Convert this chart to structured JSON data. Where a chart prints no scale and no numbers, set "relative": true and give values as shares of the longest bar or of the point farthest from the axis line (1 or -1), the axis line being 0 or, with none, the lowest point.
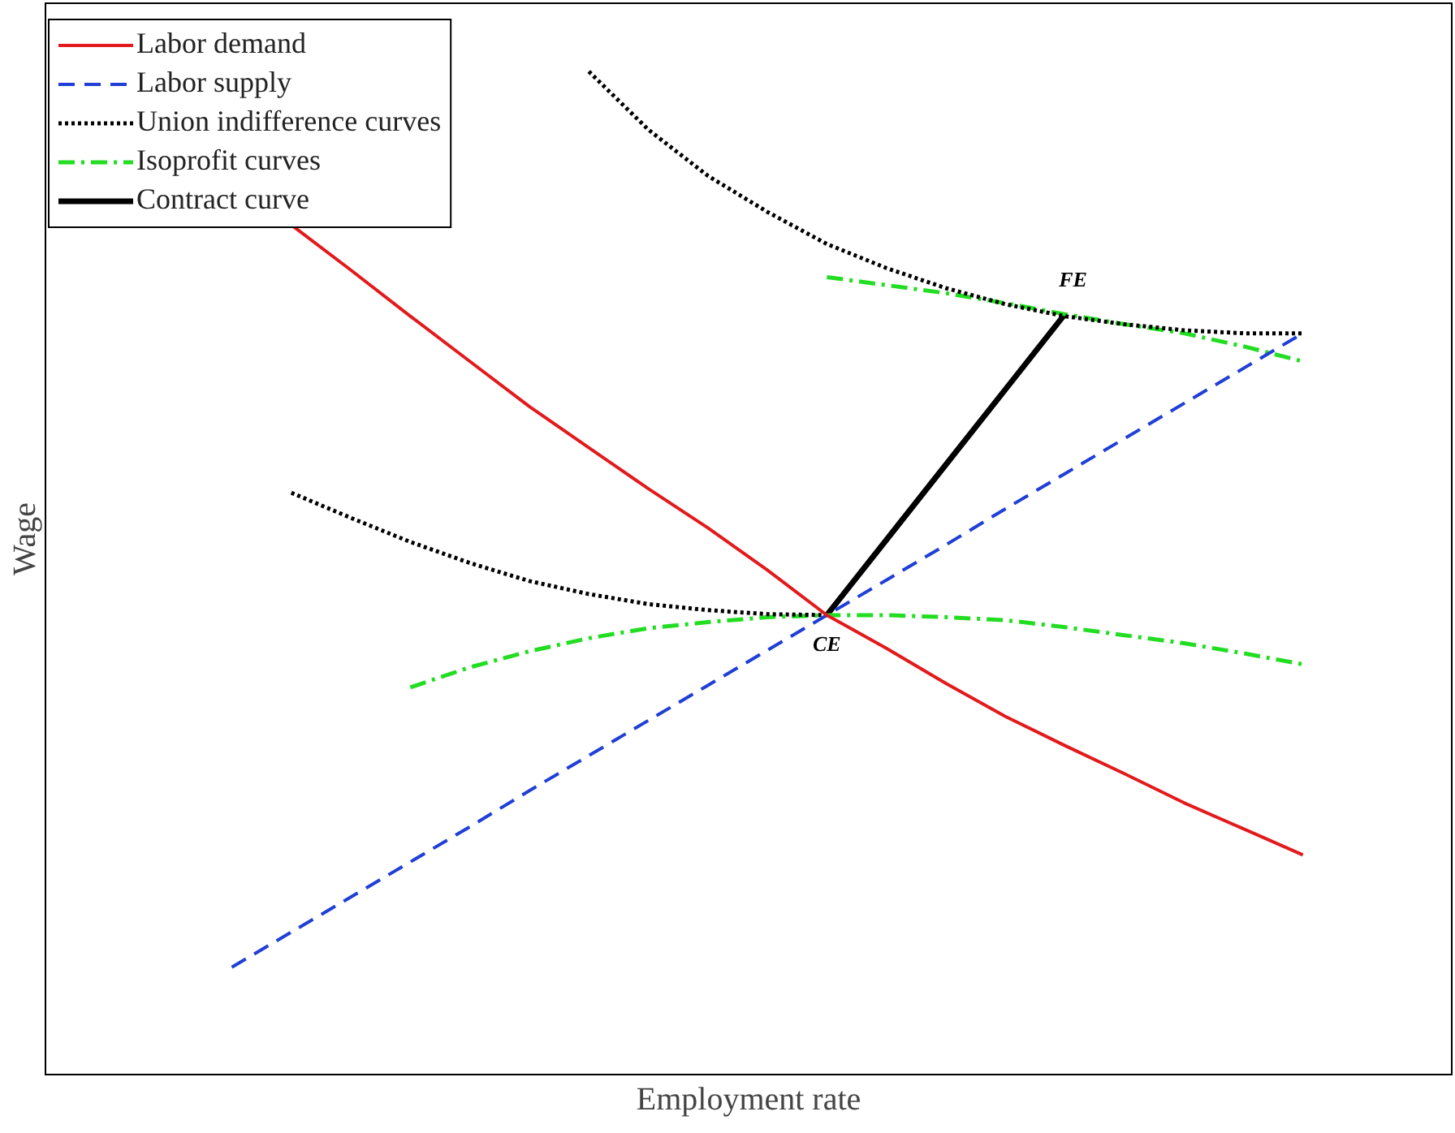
{
  "chart_data": {
    "type": "line",
    "relative": true,
    "xlabel": "Employment rate",
    "ylabel": "Wage",
    "legend": "top left",
    "marker": "none",
    "categories": [
      null,
      null,
      null,
      null,
      null,
      null,
      null,
      null,
      null,
      null,
      null,
      null,
      null,
      null,
      null,
      null,
      null,
      null,
      null
    ],
    "series": [
      {
        "name": "Labor demand",
        "color": "#e31a1c",
        "line_style": "solid",
        "values": [
          null,
          0.847,
          0.802,
          0.756,
          0.711,
          0.666,
          0.625,
          0.584,
          0.545,
          0.503,
          0.458,
          0.425,
          0.39,
          0.357,
          0.328,
          0.3,
          0.271,
          0.245,
          0.219
        ]
      },
      {
        "name": "Labor supply",
        "color": "#1f3fd6",
        "line_style": "dashed",
        "values": [
          0.107,
          0.142,
          0.177,
          0.212,
          0.247,
          0.283,
          0.318,
          0.353,
          0.388,
          0.423,
          0.458,
          0.493,
          0.528,
          0.564,
          0.599,
          0.634,
          0.669,
          0.704,
          0.739
        ]
      },
      {
        "name": "Union indifference curves",
        "color": "#000000",
        "line_style": "dotted",
        "values": [
          null,
          null,
          null,
          null,
          null,
          null,
          1.0,
          0.942,
          0.896,
          0.86,
          0.828,
          0.804,
          0.784,
          0.768,
          0.756,
          0.748,
          0.742,
          0.739,
          0.739
        ]
      },
      {
        "color": "#000000",
        "line_style": "dotted",
        "values": [
          null,
          0.58,
          0.555,
          0.531,
          0.51,
          0.492,
          0.479,
          0.469,
          0.463,
          0.459,
          0.458,
          null,
          null,
          null,
          null,
          null,
          null,
          null,
          null
        ]
      },
      {
        "name": "Isoprofit curves",
        "color": "#22dd22",
        "line_style": "dashdot",
        "values": [
          null,
          null,
          null,
          null,
          null,
          null,
          null,
          null,
          null,
          null,
          0.795,
          0.787,
          0.779,
          0.769,
          0.758,
          0.748,
          0.739,
          0.726,
          0.711
        ]
      },
      {
        "color": "#22dd22",
        "line_style": "dashdot",
        "values": [
          null,
          null,
          null,
          0.386,
          0.406,
          0.422,
          0.435,
          0.445,
          0.451,
          0.456,
          0.458,
          0.458,
          0.456,
          0.453,
          0.446,
          0.438,
          0.43,
          0.42,
          0.409
        ]
      },
      {
        "name": "Contract curve",
        "color": "#000000",
        "line_style": "solid",
        "values": [
          null,
          null,
          null,
          null,
          null,
          null,
          null,
          null,
          null,
          null,
          0.458,
          0.533,
          0.608,
          0.683,
          0.758,
          null,
          null,
          null,
          null
        ]
      }
    ],
    "annotations": [
      {
        "text": "FE",
        "y": 0.758
      },
      {
        "text": "CE",
        "y": 0.458
      }
    ]
  }
}
